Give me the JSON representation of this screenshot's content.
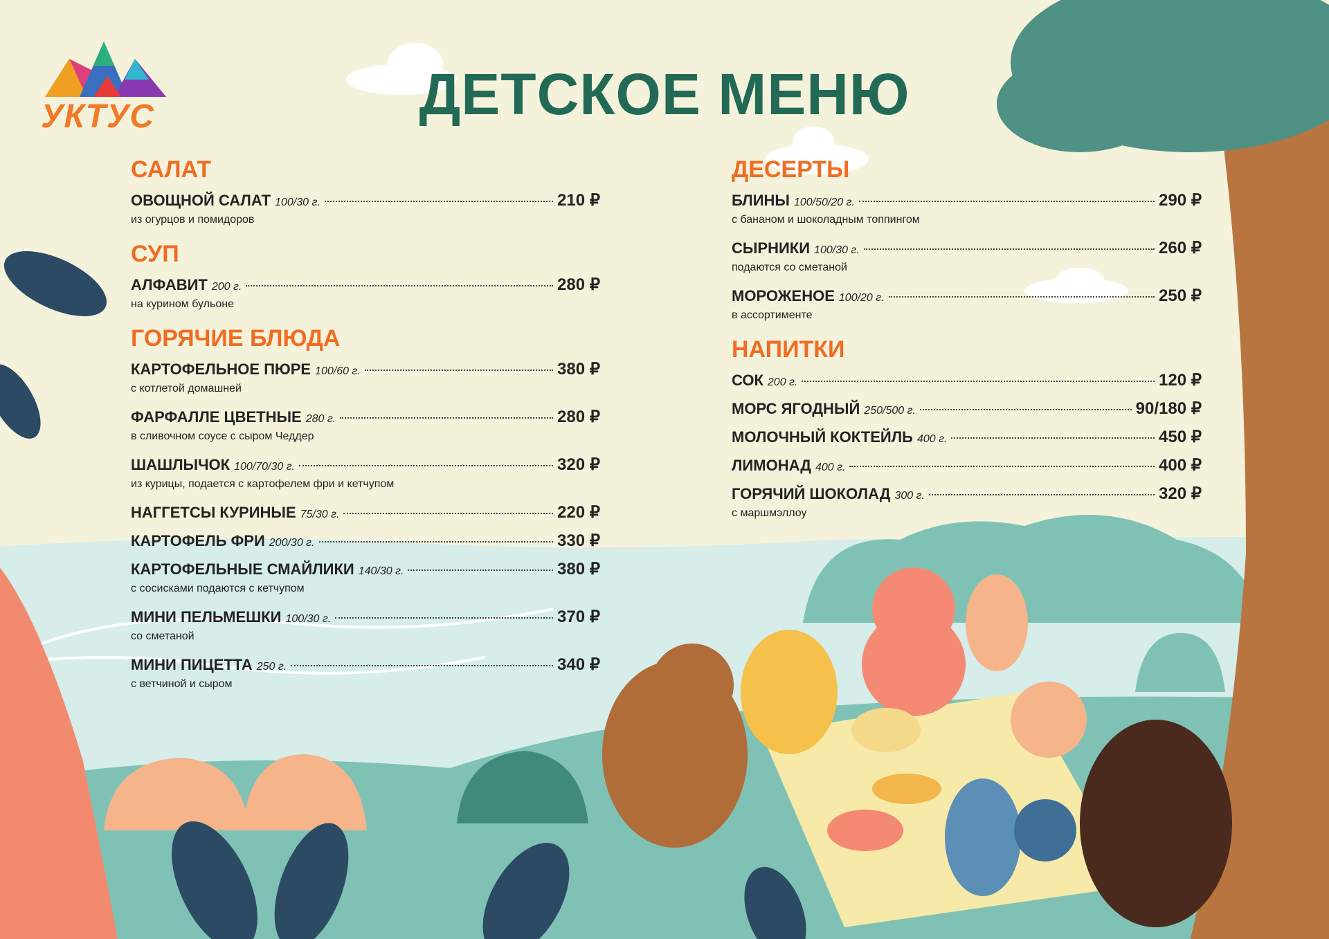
{
  "logo": {
    "text": "УКТУС"
  },
  "title": "ДЕТСКОЕ МЕНЮ",
  "left_sections": [
    {
      "heading": "САЛАТ",
      "items": [
        {
          "name": "ОВОЩНОЙ САЛАТ",
          "weight": "100/30 г.",
          "price": "210 ₽",
          "desc": "из огурцов и помидоров"
        }
      ]
    },
    {
      "heading": "СУП",
      "items": [
        {
          "name": "АЛФАВИТ",
          "weight": "200 г.",
          "price": "280 ₽",
          "desc": "на курином бульоне"
        }
      ]
    },
    {
      "heading": "ГОРЯЧИЕ БЛЮДА",
      "items": [
        {
          "name": "КАРТОФЕЛЬНОЕ ПЮРЕ",
          "weight": "100/60 г.",
          "price": "380 ₽",
          "desc": "с котлетой домашней"
        },
        {
          "name": "ФАРФАЛЛЕ ЦВЕТНЫЕ",
          "weight": "280 г.",
          "price": "280 ₽",
          "desc": "в сливочном соусе с сыром Чеддер"
        },
        {
          "name": "ШАШЛЫЧОК",
          "weight": "100/70/30 г.",
          "price": "320 ₽",
          "desc": "из курицы, подается с картофелем фри и кетчупом"
        },
        {
          "name": "НАГГЕТСЫ КУРИНЫЕ",
          "weight": "75/30 г.",
          "price": "220 ₽",
          "desc": ""
        },
        {
          "name": "КАРТОФЕЛЬ ФРИ",
          "weight": "200/30 г.",
          "price": "330 ₽",
          "desc": ""
        },
        {
          "name": "КАРТОФЕЛЬНЫЕ СМАЙЛИКИ",
          "weight": "140/30 г.",
          "price": "380 ₽",
          "desc": "с сосисками подаются с кетчупом"
        },
        {
          "name": "МИНИ ПЕЛЬМЕШКИ",
          "weight": "100/30 г.",
          "price": "370 ₽",
          "desc": "со сметаной"
        },
        {
          "name": "МИНИ ПИЦЕТТА",
          "weight": "250 г.",
          "price": "340 ₽",
          "desc": "с ветчиной и сыром"
        }
      ]
    }
  ],
  "right_sections": [
    {
      "heading": "ДЕСЕРТЫ",
      "items": [
        {
          "name": "БЛИНЫ",
          "weight": "100/50/20 г.",
          "price": "290 ₽",
          "desc": "с бананом и шоколадным топпингом"
        },
        {
          "name": "СЫРНИКИ",
          "weight": "100/30 г.",
          "price": "260 ₽",
          "desc": "подаются со сметаной"
        },
        {
          "name": "МОРОЖЕНОЕ",
          "weight": "100/20 г.",
          "price": "250 ₽",
          "desc": "в ассортименте"
        }
      ]
    },
    {
      "heading": "НАПИТКИ",
      "items": [
        {
          "name": "СОК",
          "weight": "200 г.",
          "price": "120 ₽",
          "desc": ""
        },
        {
          "name": "МОРС ЯГОДНЫЙ",
          "weight": "250/500 г.",
          "price": "90/180 ₽",
          "desc": ""
        },
        {
          "name": "МОЛОЧНЫЙ КОКТЕЙЛЬ",
          "weight": "400 г.",
          "price": "450 ₽",
          "desc": ""
        },
        {
          "name": "ЛИМОНАД",
          "weight": "400 г.",
          "price": "400 ₽",
          "desc": ""
        },
        {
          "name": "ГОРЯЧИЙ ШОКОЛАД",
          "weight": "300 г.",
          "price": "320 ₽",
          "desc": "с маршмэллоу"
        }
      ]
    }
  ],
  "colors": {
    "background": "#f5f2dc",
    "title": "#226a55",
    "heading": "#ef6c22",
    "text": "#232323"
  }
}
